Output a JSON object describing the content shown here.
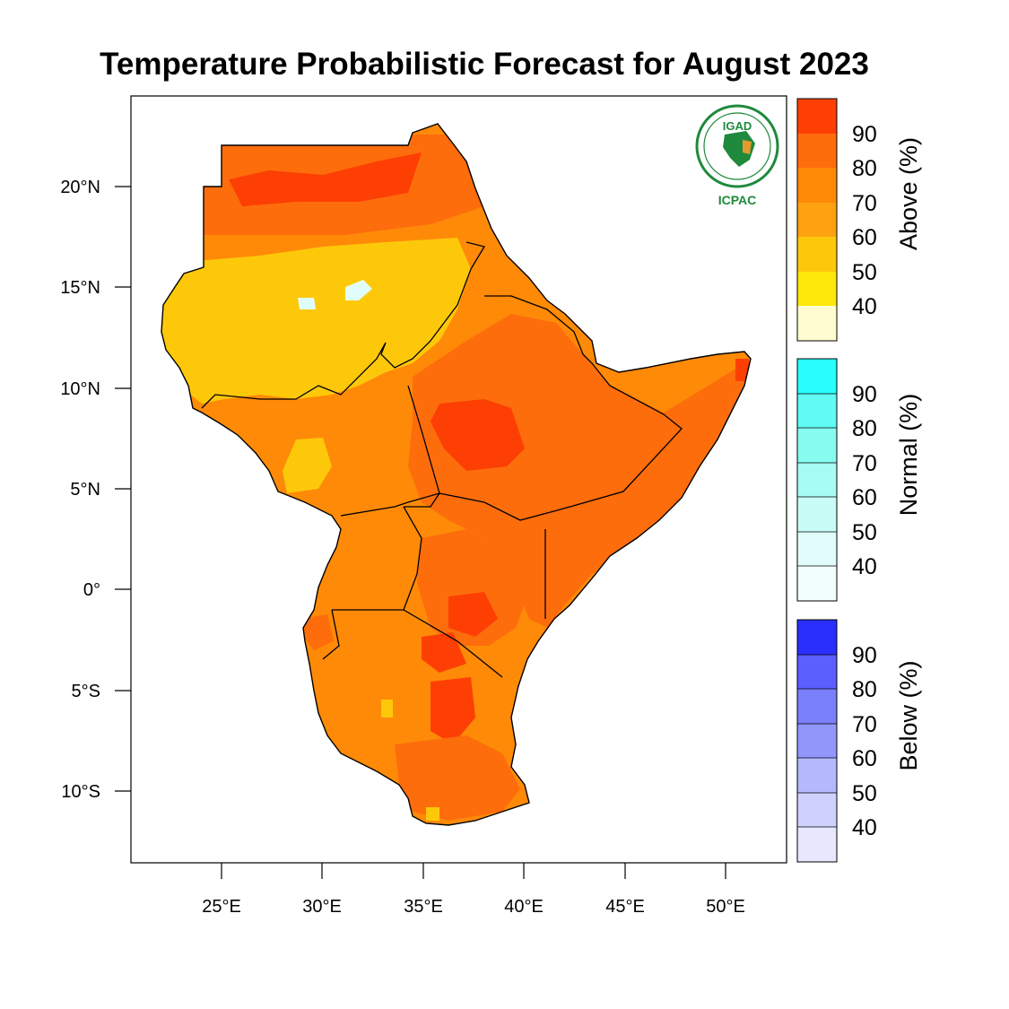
{
  "title": "Temperature Probabilistic Forecast for August 2023",
  "logo": {
    "top_text": "IGAD",
    "bottom_text": "ICPAC",
    "color": "#1f8a3c",
    "accent": "#e69a2e"
  },
  "axes": {
    "lat_ticks": [
      "20°N",
      "15°N",
      "10°N",
      "5°N",
      "0°",
      "5°S",
      "10°S"
    ],
    "lon_ticks": [
      "25°E",
      "30°E",
      "35°E",
      "40°E",
      "45°E",
      "50°E"
    ]
  },
  "legends": {
    "above": {
      "title": "Above (%)",
      "levels": [
        "90",
        "80",
        "70",
        "60",
        "50",
        "40"
      ],
      "colors": [
        "#fd3f03",
        "#fd6d0c",
        "#fe8a08",
        "#fea210",
        "#fec80a",
        "#fde80b",
        "#fffdd0"
      ]
    },
    "normal": {
      "title": "Normal (%)",
      "levels": [
        "90",
        "80",
        "70",
        "60",
        "50",
        "40"
      ],
      "colors": [
        "#28fefe",
        "#5ffbf4",
        "#88fbf1",
        "#a7fcf5",
        "#c9fcf7",
        "#e1fdfb",
        "#f1fefd"
      ]
    },
    "below": {
      "title": "Below (%)",
      "levels": [
        "90",
        "80",
        "70",
        "60",
        "50",
        "40"
      ],
      "colors": [
        "#2a2ffc",
        "#5b5ffc",
        "#7a7ffb",
        "#9196fb",
        "#b5b8fc",
        "#cfd1fd",
        "#e7e8fe"
      ]
    }
  },
  "map_colors": {
    "above90": "#fd3f03",
    "above80": "#fd6d0c",
    "above70": "#fe8a08",
    "above60": "#fea210",
    "above50": "#fec80a",
    "above40": "#fde80b",
    "normal50": "#e1fdfb",
    "border": "#000000",
    "land_none": "#ffffff"
  }
}
